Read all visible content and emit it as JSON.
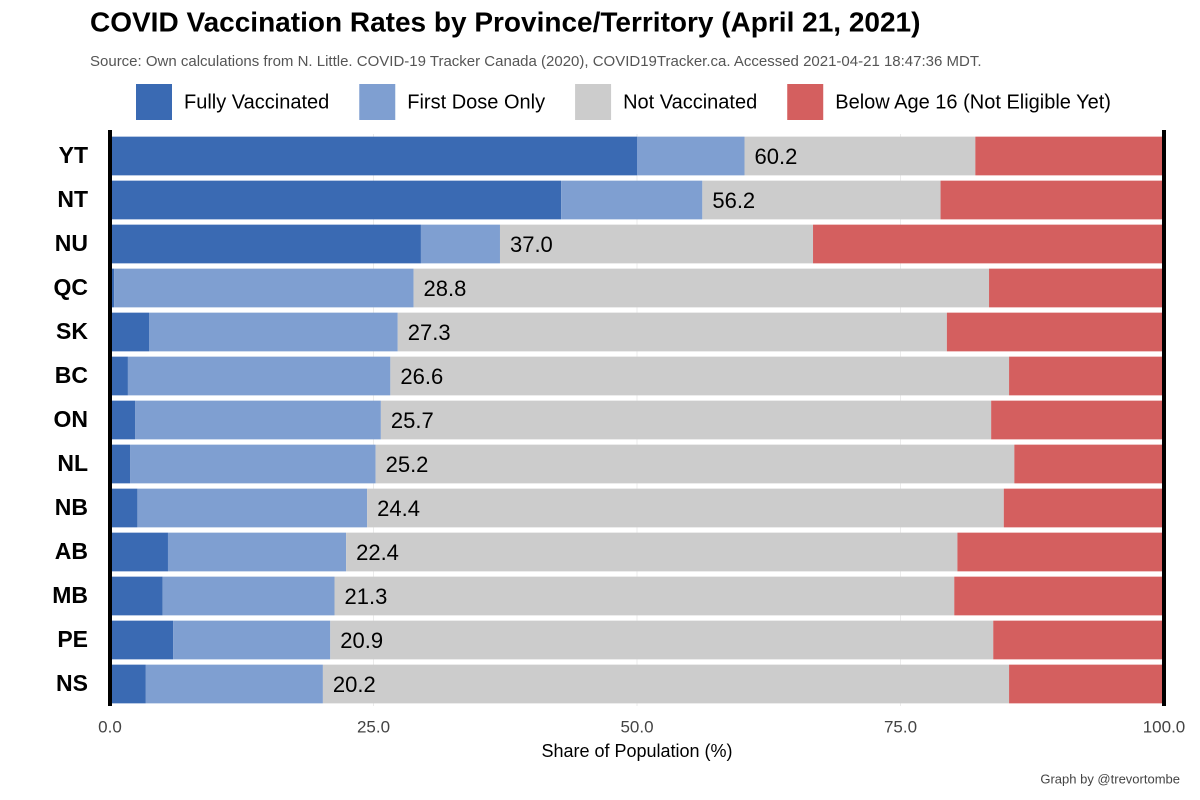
{
  "chart_data": {
    "type": "stacked-bar",
    "title": "COVID Vaccination Rates by Province/Territory (April 21, 2021)",
    "subtitle": "Source: Own calculations from N. Little. COVID-19 Tracker Canada (2020), COVID19Tracker.ca. Accessed 2021-04-21 18:47:36 MDT.",
    "xlabel": "Share of Population (%)",
    "caption": "Graph by @trevortombe",
    "categories": [
      "YT",
      "NT",
      "NU",
      "QC",
      "SK",
      "BC",
      "ON",
      "NL",
      "NB",
      "AB",
      "MB",
      "PE",
      "NS"
    ],
    "series": [
      {
        "name": "Fully Vaccinated",
        "color": "#3a6ab3",
        "values": [
          50.0,
          42.8,
          29.5,
          0.4,
          3.7,
          1.7,
          2.4,
          1.9,
          2.6,
          5.5,
          5.0,
          6.0,
          3.4
        ]
      },
      {
        "name": "First Dose Only",
        "color": "#7f9fd1",
        "values": [
          10.2,
          13.4,
          7.5,
          28.4,
          23.6,
          24.9,
          23.3,
          23.3,
          21.8,
          16.9,
          16.3,
          14.9,
          16.8
        ]
      },
      {
        "name": "Not Vaccinated",
        "color": "#cccccc",
        "values": [
          21.9,
          22.6,
          29.7,
          54.6,
          52.1,
          58.7,
          57.9,
          60.6,
          60.4,
          58.0,
          58.8,
          62.9,
          65.1
        ]
      },
      {
        "name": "Below Age 16 (Not Eligible Yet)",
        "color": "#d45f5f",
        "values": [
          17.9,
          21.2,
          33.3,
          16.6,
          20.6,
          14.7,
          16.4,
          14.2,
          15.2,
          19.6,
          19.9,
          16.2,
          14.7
        ]
      }
    ],
    "vaccinated_labels": [
      60.2,
      56.2,
      37.0,
      28.8,
      27.3,
      26.6,
      25.7,
      25.2,
      24.4,
      22.4,
      21.3,
      20.9,
      20.2
    ],
    "xlim": [
      0,
      100
    ],
    "xticks": [
      0,
      25,
      50,
      75,
      100
    ],
    "grid": true
  }
}
